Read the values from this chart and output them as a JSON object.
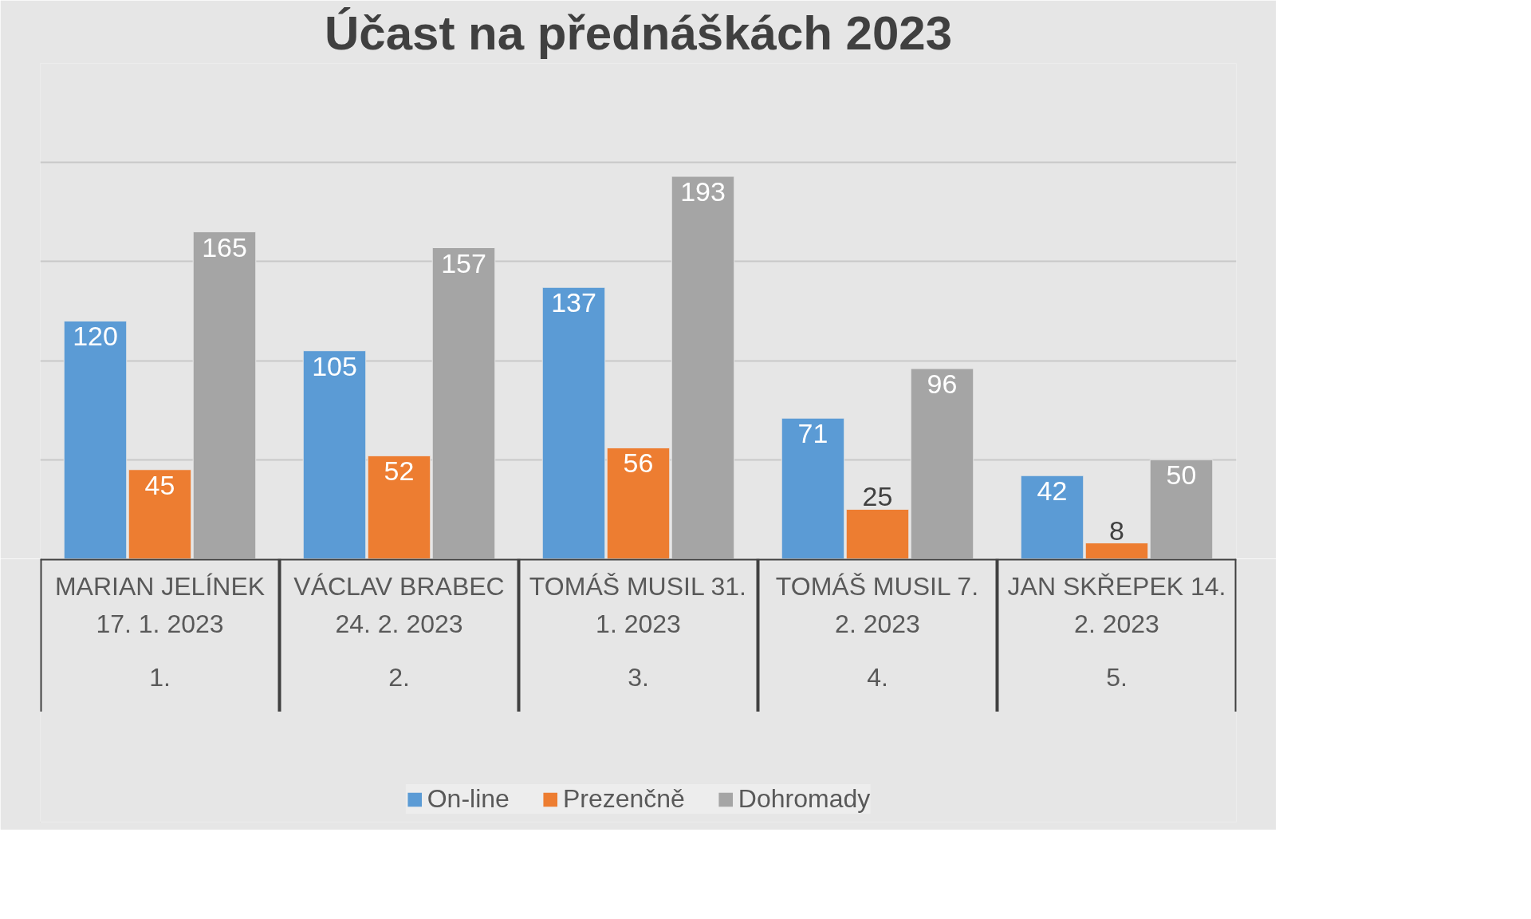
{
  "chart_data": {
    "type": "bar",
    "title": "Účast na přednáškách 2023",
    "categories": [
      "MARIAN JELÍNEK 17. 1. 2023",
      "VÁCLAV BRABEC 24. 2. 2023",
      "TOMÁŠ MUSIL 31. 1. 2023",
      "TOMÁŠ MUSIL 7. 2. 2023",
      "JAN SKŘEPEK 14. 2. 2023"
    ],
    "series": [
      {
        "name": "On-line",
        "color": "#5b9bd5",
        "values": [
          120,
          105,
          137,
          71,
          42
        ]
      },
      {
        "name": "Prezenčně",
        "color": "#ed7d31",
        "values": [
          45,
          52,
          56,
          25,
          8
        ]
      },
      {
        "name": "Dohromady",
        "color": "#a5a5a5",
        "values": [
          165,
          157,
          193,
          96,
          50
        ]
      }
    ],
    "annotations": [
      "1.",
      "2.",
      "3.",
      "4.",
      "5."
    ],
    "ylim": [
      0,
      250
    ],
    "yticks": [
      {
        "value": 0,
        "label": null
      },
      {
        "value": 50,
        "label": null
      },
      {
        "value": 100,
        "label": null
      },
      {
        "value": 150,
        "label": null
      },
      {
        "value": 200,
        "label": null
      },
      {
        "value": 250,
        "label": null
      }
    ],
    "grid": "y",
    "data_labels": true,
    "legend": "bottom",
    "tick_labels": "x"
  }
}
